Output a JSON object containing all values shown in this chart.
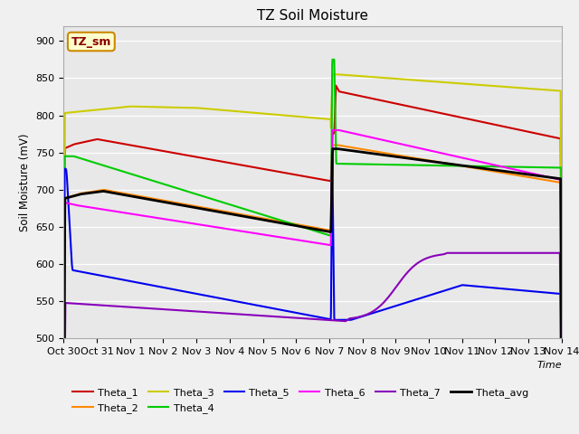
{
  "title": "TZ Soil Moisture",
  "ylabel": "Soil Moisture (mV)",
  "xlabel": "Time",
  "ylim": [
    500,
    920
  ],
  "yticks": [
    500,
    550,
    600,
    650,
    700,
    750,
    800,
    850,
    900
  ],
  "xtick_labels": [
    "Oct 30",
    "Oct 31",
    "Nov 1",
    "Nov 2",
    "Nov 3",
    "Nov 4",
    "Nov 5",
    "Nov 6",
    "Nov 7",
    "Nov 8",
    "Nov 9",
    "Nov 10",
    "Nov 11",
    "Nov 12",
    "Nov 13",
    "Nov 14"
  ],
  "legend_box_label": "TZ_sm",
  "fig_bg": "#f0f0f0",
  "ax_bg": "#e8e8e8",
  "colors": {
    "Theta_1": "#cc0000",
    "Theta_2": "#ff8800",
    "Theta_3": "#cccc00",
    "Theta_4": "#00cc00",
    "Theta_5": "#0000ee",
    "Theta_6": "#ff00ff",
    "Theta_7": "#8800bb",
    "Theta_avg": "#000000"
  },
  "linewidths": {
    "Theta_1": 1.5,
    "Theta_2": 1.5,
    "Theta_3": 1.5,
    "Theta_4": 1.5,
    "Theta_5": 1.5,
    "Theta_6": 1.5,
    "Theta_7": 1.5,
    "Theta_avg": 2.0
  }
}
